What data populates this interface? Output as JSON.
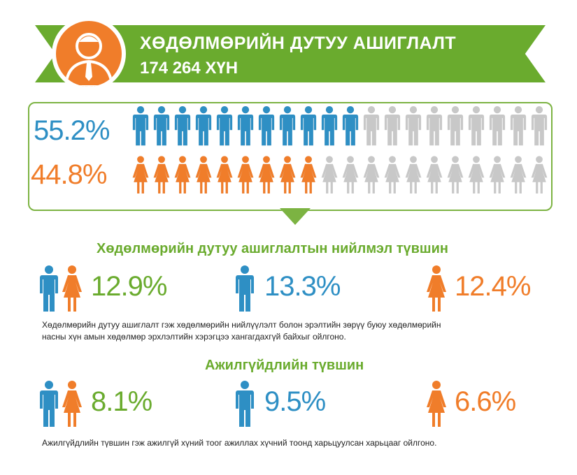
{
  "banner": {
    "title": "ХӨДӨЛМӨРИЙН ДУТУУ АШИГЛАЛТ",
    "subtitle": "174 264 ХҮН",
    "icon": "person-tie-icon"
  },
  "gender_share": {
    "male_pct": "55.2%",
    "female_pct": "44.8%",
    "male_fraction": 0.552,
    "female_fraction": 0.448,
    "colors": {
      "male": "#2e8fc4",
      "female": "#f07d2a",
      "inactive": "#c8c8c8",
      "accent": "#6aab2e"
    }
  },
  "composite": {
    "title": "Хөдөлмөрийн дутуу ашиглалтын нийлмэл түвшин",
    "total": "12.9%",
    "male": "13.3%",
    "female": "12.4%",
    "description_line1": "Хөдөлмөрийн дутуу ашиглалт гэж хөдөлмөрийн нийлүүлэлт болон эрэлтийн зөрүү буюу хөдөлмөрийн",
    "description_line2": "насны хүн амын хөдөлмөр эрхлэлтийн хэрэгцээ хангагдахгүй байхыг ойлгоно."
  },
  "unemployment": {
    "title": "Ажилгүйдлийн түвшин",
    "total": "8.1%",
    "male": "9.5%",
    "female": "6.6%",
    "description": "Ажилгүйдлийн түвшин гэж ажилгүй хүний тоог ажиллах хүчний тоонд харьцуулсан харьцааг ойлгоно."
  }
}
